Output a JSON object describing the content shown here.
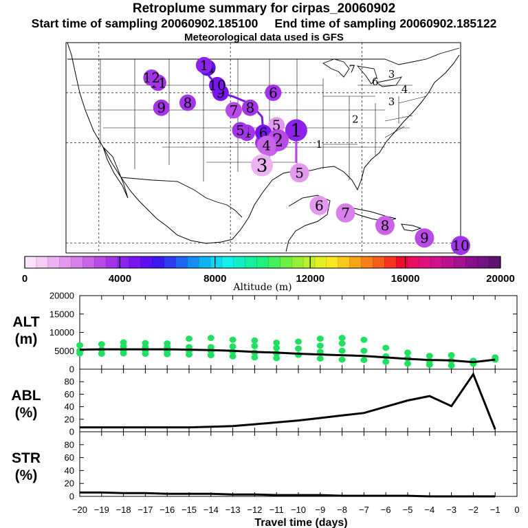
{
  "header": {
    "title": "Retroplume summary for cirpas_20060902",
    "start_label": "Start time of sampling 20060902.185100",
    "end_label": "End time of sampling 20060902.185122",
    "met_label": "Meteorological data used is GFS"
  },
  "colorbar": {
    "label": "Altitude (m)",
    "ticks": [
      "0",
      "4000",
      "8000",
      "12000",
      "16000",
      "20000"
    ],
    "range": [
      0,
      20000
    ],
    "colors": [
      "#fbe4fb",
      "#f4ccf6",
      "#ecb3f2",
      "#e299ee",
      "#d77fea",
      "#c964e8",
      "#b84ae6",
      "#a334e8",
      "#8c22ec",
      "#7814f0",
      "#5c10f2",
      "#3c18f0",
      "#2c3cf2",
      "#2064f2",
      "#148cf4",
      "#10b4f4",
      "#10d8f4",
      "#12f0e8",
      "#10f0c4",
      "#14f0a0",
      "#20f07c",
      "#44f05c",
      "#6cf044",
      "#94f034",
      "#bcf02c",
      "#e4f024",
      "#f8e820",
      "#f8c81c",
      "#f8a418",
      "#f88018",
      "#f85c1c",
      "#f83420",
      "#f00c2c",
      "#ec0c60",
      "#e01080",
      "#d0108c",
      "#bc1090",
      "#a41090",
      "#88108c",
      "#701484",
      "#5c1470"
    ]
  },
  "map": {
    "day_markers": [
      {
        "label": "1",
        "value": 4200,
        "lon": -90.0,
        "lat": 32.5
      },
      {
        "label": "2",
        "value": 3200,
        "lon": -92.8,
        "lat": 30.5
      },
      {
        "label": "3",
        "value": 1000,
        "lon": -95.2,
        "lat": 25.5
      },
      {
        "label": "4",
        "value": 2600,
        "lon": -94.5,
        "lat": 29.5
      },
      {
        "label": "5",
        "value": 1600,
        "lon": -89.5,
        "lat": 24.0
      },
      {
        "label": "6",
        "value": 1800,
        "lon": -86.5,
        "lat": 17.5
      },
      {
        "label": "7",
        "value": 2400,
        "lon": -82.5,
        "lat": 16.0
      },
      {
        "label": "8",
        "value": 2600,
        "lon": -76.5,
        "lat": 13.5
      },
      {
        "label": "9",
        "value": 3200,
        "lon": -70.5,
        "lat": 11.0
      },
      {
        "label": "10",
        "value": 3600,
        "lon": -65.0,
        "lat": 9.5
      }
    ],
    "back_markers": [
      {
        "label": "1",
        "value": 3600,
        "lon": -90.0,
        "lat": 32.5
      },
      {
        "label": "2",
        "value": 2600,
        "lon": -94.5,
        "lat": 30.5
      },
      {
        "label": "3",
        "value": 2800,
        "lon": -94.0,
        "lat": 29.0
      },
      {
        "label": "4",
        "value": 3800,
        "lon": -95.0,
        "lat": 30.0
      },
      {
        "label": "5",
        "value": 1800,
        "lon": -93.0,
        "lat": 33.5
      },
      {
        "label": "6",
        "value": 4600,
        "lon": -95.0,
        "lat": 32.0
      },
      {
        "label": "4",
        "value": 3800,
        "lon": -97.5,
        "lat": 32.0
      },
      {
        "label": "5",
        "value": 3800,
        "lon": -98.5,
        "lat": 32.5
      },
      {
        "label": "7",
        "value": 3200,
        "lon": -99.5,
        "lat": 36.5
      },
      {
        "label": "8",
        "value": 3800,
        "lon": -97.0,
        "lat": 37.0
      },
      {
        "label": "9",
        "value": 4400,
        "lon": -101.5,
        "lat": 40.0
      },
      {
        "label": "10",
        "value": 4400,
        "lon": -102.0,
        "lat": 41.5
      },
      {
        "label": "11",
        "value": 5200,
        "lon": -103.5,
        "lat": 45.0
      },
      {
        "label": "6",
        "value": 3800,
        "lon": -93.5,
        "lat": 40.0
      },
      {
        "label": "8",
        "value": 3800,
        "lon": -106.5,
        "lat": 38.0
      },
      {
        "label": "9",
        "value": 3800,
        "lon": -110.5,
        "lat": 37.0
      },
      {
        "label": "11",
        "value": 3600,
        "lon": -111.0,
        "lat": 42.0
      },
      {
        "label": "12",
        "value": 3600,
        "lon": -112.0,
        "lat": 43.0
      },
      {
        "label": "1",
        "value": 4200,
        "lon": -104.0,
        "lat": 45.5
      }
    ],
    "small_labels": [
      {
        "label": "7",
        "lon": -81.5,
        "lat": 44.0
      },
      {
        "label": "6",
        "lon": -78.0,
        "lat": 41.5
      },
      {
        "label": "3",
        "lon": -75.5,
        "lat": 43.0
      },
      {
        "label": "4",
        "lon": -73.5,
        "lat": 40.0
      },
      {
        "label": "3",
        "lon": -75.5,
        "lat": 37.5
      },
      {
        "label": "2",
        "lon": -81.0,
        "lat": 34.0
      },
      {
        "label": "1",
        "lon": -86.5,
        "lat": 29.0
      }
    ]
  },
  "chart_data": [
    {
      "type": "line",
      "panel": "ALT",
      "ylabel": "ALT (m)",
      "xlabel": "Travel time (days)",
      "x": [
        -20,
        -19,
        -18,
        -17,
        -16,
        -15,
        -14,
        -13,
        -12,
        -11,
        -10,
        -9,
        -8,
        -7,
        -6,
        -5,
        -4,
        -3,
        -2,
        -1
      ],
      "mean_altitude": [
        5300,
        5400,
        5400,
        5400,
        5400,
        5300,
        5200,
        5000,
        4700,
        4500,
        4200,
        4000,
        3800,
        3600,
        3200,
        2800,
        2500,
        2400,
        1900,
        2600
      ],
      "ylim": [
        0,
        20000
      ],
      "yticks": [
        0,
        5000,
        10000,
        15000,
        20000
      ],
      "xlim": [
        -20,
        0
      ],
      "xticks": [
        -20,
        -19,
        -18,
        -17,
        -16,
        -15,
        -14,
        -13,
        -12,
        -11,
        -10,
        -9,
        -8,
        -7,
        -6,
        -5,
        -4,
        -3,
        -2,
        -1,
        0
      ],
      "scatter_color": "#20e060",
      "points": [
        {
          "x": -20,
          "y": 6500
        },
        {
          "x": -20,
          "y": 5000
        },
        {
          "x": -20,
          "y": 4300
        },
        {
          "x": -19,
          "y": 6800
        },
        {
          "x": -19,
          "y": 5300
        },
        {
          "x": -19,
          "y": 4200
        },
        {
          "x": -18,
          "y": 7300
        },
        {
          "x": -18,
          "y": 6200
        },
        {
          "x": -18,
          "y": 5200
        },
        {
          "x": -18,
          "y": 4300
        },
        {
          "x": -17,
          "y": 7100
        },
        {
          "x": -17,
          "y": 6000
        },
        {
          "x": -17,
          "y": 5100
        },
        {
          "x": -17,
          "y": 4200
        },
        {
          "x": -16,
          "y": 7000
        },
        {
          "x": -16,
          "y": 6000
        },
        {
          "x": -16,
          "y": 5000
        },
        {
          "x": -16,
          "y": 4100
        },
        {
          "x": -15,
          "y": 8300
        },
        {
          "x": -15,
          "y": 6000
        },
        {
          "x": -15,
          "y": 5000
        },
        {
          "x": -15,
          "y": 4000
        },
        {
          "x": -14,
          "y": 8500
        },
        {
          "x": -14,
          "y": 6000
        },
        {
          "x": -14,
          "y": 5000
        },
        {
          "x": -14,
          "y": 3800
        },
        {
          "x": -13,
          "y": 8000
        },
        {
          "x": -13,
          "y": 6200
        },
        {
          "x": -13,
          "y": 4800
        },
        {
          "x": -13,
          "y": 3500
        },
        {
          "x": -12,
          "y": 7800
        },
        {
          "x": -12,
          "y": 6300
        },
        {
          "x": -12,
          "y": 4500
        },
        {
          "x": -12,
          "y": 3200
        },
        {
          "x": -11,
          "y": 7200
        },
        {
          "x": -11,
          "y": 5800
        },
        {
          "x": -11,
          "y": 4300
        },
        {
          "x": -11,
          "y": 3000
        },
        {
          "x": -10,
          "y": 7500
        },
        {
          "x": -10,
          "y": 5600
        },
        {
          "x": -10,
          "y": 3900
        },
        {
          "x": -9,
          "y": 8300
        },
        {
          "x": -9,
          "y": 6400
        },
        {
          "x": -9,
          "y": 4700
        },
        {
          "x": -9,
          "y": 2900
        },
        {
          "x": -8,
          "y": 8500
        },
        {
          "x": -8,
          "y": 7000
        },
        {
          "x": -8,
          "y": 5000
        },
        {
          "x": -8,
          "y": 2600
        },
        {
          "x": -7,
          "y": 8000
        },
        {
          "x": -7,
          "y": 5000
        },
        {
          "x": -7,
          "y": 2500
        },
        {
          "x": -6,
          "y": 5800
        },
        {
          "x": -6,
          "y": 3500
        },
        {
          "x": -6,
          "y": 2000
        },
        {
          "x": -5,
          "y": 4500
        },
        {
          "x": -5,
          "y": 3000
        },
        {
          "x": -5,
          "y": 1500
        },
        {
          "x": -4,
          "y": 3600
        },
        {
          "x": -4,
          "y": 2200
        },
        {
          "x": -4,
          "y": 1200
        },
        {
          "x": -3,
          "y": 3800
        },
        {
          "x": -3,
          "y": 2300
        },
        {
          "x": -3,
          "y": 1000
        },
        {
          "x": -2,
          "y": 2300
        },
        {
          "x": -2,
          "y": 1500
        },
        {
          "x": -1,
          "y": 3200
        },
        {
          "x": -1,
          "y": 2600
        }
      ]
    },
    {
      "type": "line",
      "panel": "ABL",
      "ylabel": "ABL (%)",
      "x": [
        -20,
        -19,
        -18,
        -17,
        -16,
        -15,
        -14,
        -13,
        -12,
        -11,
        -10,
        -9,
        -8,
        -7,
        -6,
        -5,
        -4,
        -3,
        -2,
        -1
      ],
      "values": [
        7,
        7,
        7,
        7,
        7,
        7,
        8,
        9,
        12,
        15,
        18,
        22,
        26,
        30,
        40,
        50,
        57,
        41,
        92,
        4
      ],
      "ylim": [
        0,
        100
      ],
      "yticks": [
        0,
        20,
        40,
        60,
        80
      ]
    },
    {
      "type": "line",
      "panel": "STR",
      "ylabel": "STR (%)",
      "x": [
        -20,
        -19,
        -18,
        -17,
        -16,
        -15,
        -14,
        -13,
        -12,
        -11,
        -10,
        -9,
        -8,
        -7,
        -6,
        -5,
        -4,
        -3,
        -2,
        -1
      ],
      "values": [
        6,
        6,
        5,
        5,
        4,
        4,
        4,
        3,
        3,
        2,
        2,
        2,
        1,
        1,
        1,
        1,
        0,
        0,
        0,
        0
      ],
      "ylim": [
        0,
        100
      ],
      "yticks": [
        0,
        20,
        40,
        60,
        80
      ]
    }
  ],
  "panels": {
    "alt": {
      "label_line1": "ALT",
      "label_line2": "(m)",
      "tick_labels": [
        "0",
        "5000",
        "10000",
        "15000",
        "20000"
      ]
    },
    "abl": {
      "label_line1": "ABL",
      "label_line2": "(%)",
      "tick_labels": [
        "0",
        "20",
        "40",
        "60",
        "80"
      ]
    },
    "str": {
      "label_line1": "STR",
      "label_line2": "(%)",
      "tick_labels": [
        "0",
        "20",
        "40",
        "60",
        "80"
      ]
    },
    "x_tick_labels": [
      "−20",
      "−19",
      "−18",
      "−17",
      "−16",
      "−15",
      "−14",
      "−13",
      "−12",
      "−11",
      "−10",
      "−9",
      "−8",
      "−7",
      "−6",
      "−5",
      "−4",
      "−3",
      "−2",
      "−1",
      "0"
    ],
    "xlabel": "Travel time (days)"
  }
}
